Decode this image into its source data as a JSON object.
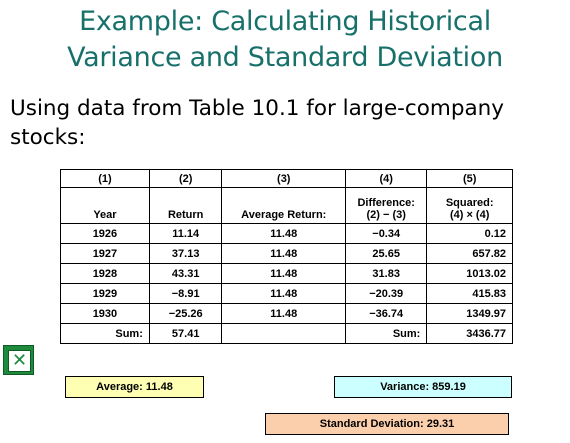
{
  "title": {
    "line1": "Example: Calculating Historical",
    "line2": "Variance and Standard Deviation"
  },
  "subtitle": {
    "line1": "Using data from Table 10.1 for large-company",
    "line2": "stocks:"
  },
  "table": {
    "col_numbers": [
      "(1)",
      "(2)",
      "(3)",
      "(4)",
      "(5)"
    ],
    "col_headers": {
      "c1": "Year",
      "c2": "Return",
      "c3": "Average Return:",
      "c4a": "Difference:",
      "c4b": "(2) − (3)",
      "c5a": "Squared:",
      "c5b": "(4) × (4)"
    },
    "rows": [
      {
        "year": "1926",
        "return": "11.14",
        "avg": "11.48",
        "diff": "−0.34",
        "sq": "0.12"
      },
      {
        "year": "1927",
        "return": "37.13",
        "avg": "11.48",
        "diff": "25.65",
        "sq": "657.82"
      },
      {
        "year": "1928",
        "return": "43.31",
        "avg": "11.48",
        "diff": "31.83",
        "sq": "1013.02"
      },
      {
        "year": "1929",
        "return": "−8.91",
        "avg": "11.48",
        "diff": "−20.39",
        "sq": "415.83"
      },
      {
        "year": "1930",
        "return": "−25.26",
        "avg": "11.48",
        "diff": "−36.74",
        "sq": "1349.97"
      }
    ],
    "sum_row": {
      "label1": "Sum:",
      "return_sum": "57.41",
      "label2": "Sum:",
      "sq_sum": "3436.77"
    }
  },
  "results": {
    "average": "Average: 11.48",
    "variance": "Variance: 859.19",
    "std_dev": "Standard Deviation: 29.31"
  },
  "icons": {
    "excel": "excel-icon"
  },
  "colors": {
    "title": "#17706a",
    "average_bg": "#ffffb3",
    "variance_bg": "#ccffff",
    "std_bg": "#fccfac"
  }
}
